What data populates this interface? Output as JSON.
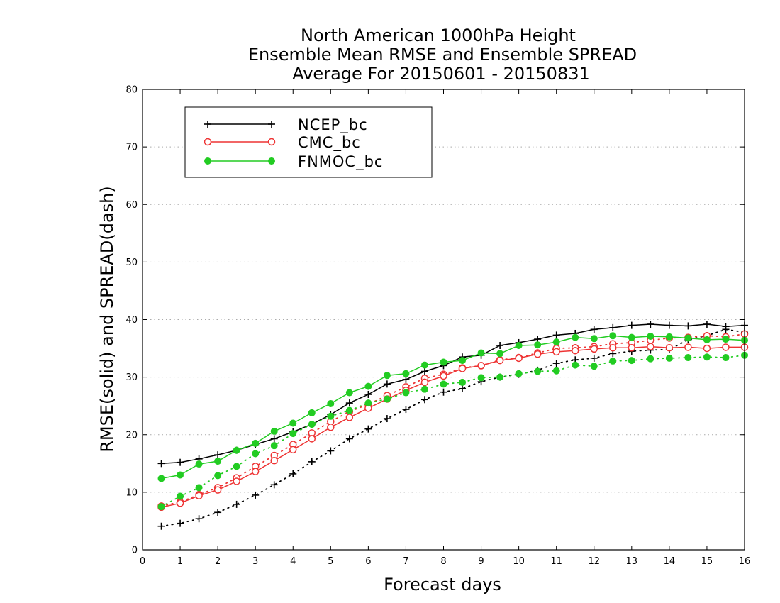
{
  "chart_data": {
    "type": "line",
    "title": [
      "North American 1000hPa Height",
      "Ensemble Mean RMSE and Ensemble SPREAD",
      "Average For 20150601 - 20150831"
    ],
    "xlabel": "Forecast days",
    "ylabel": "RMSE(solid) and SPREAD(dash)",
    "xlim": [
      0,
      16
    ],
    "ylim": [
      0,
      80
    ],
    "xticks": [
      "0",
      "1",
      "2",
      "3",
      "4",
      "5",
      "6",
      "7",
      "8",
      "9",
      "10",
      "11",
      "12",
      "13",
      "14",
      "15",
      "16"
    ],
    "yticks": [
      "0",
      "10",
      "20",
      "30",
      "40",
      "50",
      "60",
      "70",
      "80"
    ],
    "grid": "horizontal dotted",
    "legend_position": "top-left",
    "x": [
      0.5,
      1,
      1.5,
      2,
      2.5,
      3,
      3.5,
      4,
      4.5,
      5,
      5.5,
      6,
      6.5,
      7,
      7.5,
      8,
      8.5,
      9,
      9.5,
      10,
      10.5,
      11,
      11.5,
      12,
      12.5,
      13,
      13.5,
      14,
      14.5,
      15,
      15.5,
      16
    ],
    "series": [
      {
        "name": "NCEP_bc",
        "color": "#000000",
        "marker": "plus",
        "rmse": [
          15.0,
          15.2,
          15.8,
          16.5,
          17.3,
          18.3,
          19.3,
          20.5,
          21.8,
          23.5,
          25.5,
          27.0,
          28.8,
          29.6,
          31.0,
          32.0,
          33.5,
          33.8,
          35.5,
          36.0,
          36.6,
          37.3,
          37.6,
          38.3,
          38.6,
          39.0,
          39.2,
          39.0,
          38.9,
          39.2,
          38.8,
          39.0
        ],
        "spread": [
          4.1,
          4.6,
          5.4,
          6.5,
          7.9,
          9.5,
          11.3,
          13.2,
          15.3,
          17.2,
          19.3,
          21.0,
          22.8,
          24.4,
          26.1,
          27.4,
          28.0,
          29.2,
          30.0,
          30.5,
          31.2,
          32.4,
          33.0,
          33.3,
          34.1,
          34.5,
          34.7,
          34.8,
          36.5,
          37.2,
          38.3,
          37.8
        ]
      },
      {
        "name": "CMC_bc",
        "color": "#ee3333",
        "marker": "open-circle",
        "rmse": [
          7.4,
          8.1,
          9.4,
          10.4,
          11.9,
          13.6,
          15.5,
          17.4,
          19.3,
          21.3,
          23.0,
          24.6,
          26.2,
          27.7,
          29.1,
          30.2,
          31.5,
          32.0,
          32.9,
          33.3,
          34.0,
          34.4,
          34.6,
          34.9,
          35.1,
          35.1,
          35.3,
          35.1,
          35.2,
          35.0,
          35.2,
          35.2
        ],
        "spread": [
          7.6,
          8.3,
          9.6,
          10.8,
          12.5,
          14.5,
          16.4,
          18.3,
          20.3,
          22.3,
          24.0,
          25.3,
          26.8,
          28.3,
          29.8,
          30.5,
          31.6,
          32.0,
          33.0,
          33.4,
          34.2,
          35.0,
          35.1,
          35.3,
          35.8,
          36.0,
          36.4,
          36.8,
          36.9,
          37.2,
          37.0,
          37.5
        ]
      },
      {
        "name": "FNMOC_bc",
        "color": "#22cc22",
        "marker": "filled-circle",
        "rmse": [
          12.4,
          13.0,
          14.9,
          15.4,
          17.3,
          18.5,
          20.6,
          22.0,
          23.8,
          25.4,
          27.3,
          28.4,
          30.3,
          30.6,
          32.1,
          32.6,
          32.9,
          34.2,
          34.1,
          35.5,
          35.6,
          36.1,
          36.9,
          36.7,
          37.2,
          36.9,
          37.1,
          37.0,
          36.8,
          36.5,
          36.6,
          36.4
        ],
        "spread": [
          7.5,
          9.3,
          10.8,
          12.9,
          14.5,
          16.7,
          18.1,
          20.2,
          21.8,
          23.2,
          24.2,
          25.5,
          26.2,
          27.3,
          27.9,
          28.8,
          29.1,
          29.9,
          30.0,
          30.6,
          31.0,
          31.1,
          32.1,
          31.9,
          32.8,
          32.9,
          33.2,
          33.3,
          33.4,
          33.5,
          33.4,
          33.8
        ]
      }
    ]
  }
}
